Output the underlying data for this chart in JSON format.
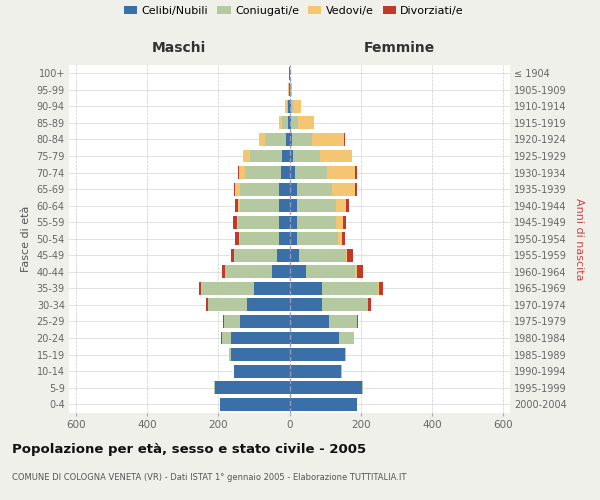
{
  "age_groups": [
    "0-4",
    "5-9",
    "10-14",
    "15-19",
    "20-24",
    "25-29",
    "30-34",
    "35-39",
    "40-44",
    "45-49",
    "50-54",
    "55-59",
    "60-64",
    "65-69",
    "70-74",
    "75-79",
    "80-84",
    "85-89",
    "90-94",
    "95-99",
    "100+"
  ],
  "birth_years": [
    "2000-2004",
    "1995-1999",
    "1990-1994",
    "1985-1989",
    "1980-1984",
    "1975-1979",
    "1970-1974",
    "1965-1969",
    "1960-1964",
    "1955-1959",
    "1950-1954",
    "1945-1949",
    "1940-1944",
    "1935-1939",
    "1930-1934",
    "1925-1929",
    "1920-1924",
    "1915-1919",
    "1910-1914",
    "1905-1909",
    "≤ 1904"
  ],
  "males": {
    "celibi": [
      195,
      210,
      155,
      165,
      165,
      140,
      120,
      100,
      50,
      35,
      30,
      30,
      30,
      30,
      25,
      20,
      10,
      5,
      3,
      1,
      1
    ],
    "coniugati": [
      0,
      2,
      2,
      5,
      25,
      45,
      110,
      150,
      130,
      120,
      110,
      115,
      110,
      110,
      100,
      90,
      60,
      15,
      5,
      1,
      0
    ],
    "vedovi": [
      0,
      0,
      0,
      0,
      0,
      0,
      0,
      0,
      1,
      2,
      3,
      4,
      5,
      12,
      18,
      20,
      15,
      10,
      4,
      1,
      0
    ],
    "divorziati": [
      0,
      0,
      0,
      0,
      2,
      3,
      5,
      5,
      8,
      8,
      10,
      10,
      8,
      3,
      3,
      2,
      1,
      0,
      0,
      0,
      0
    ]
  },
  "females": {
    "nubili": [
      190,
      205,
      145,
      155,
      140,
      110,
      90,
      90,
      45,
      28,
      22,
      20,
      20,
      20,
      15,
      10,
      8,
      4,
      3,
      1,
      1
    ],
    "coniugate": [
      0,
      2,
      2,
      5,
      40,
      80,
      130,
      160,
      140,
      130,
      115,
      110,
      110,
      100,
      90,
      75,
      55,
      20,
      8,
      2,
      0
    ],
    "vedove": [
      0,
      0,
      0,
      0,
      0,
      0,
      1,
      2,
      4,
      5,
      10,
      20,
      30,
      65,
      80,
      90,
      90,
      45,
      20,
      5,
      1
    ],
    "divorziate": [
      0,
      0,
      0,
      0,
      2,
      4,
      8,
      12,
      18,
      15,
      10,
      8,
      8,
      4,
      4,
      2,
      2,
      1,
      0,
      0,
      0
    ]
  },
  "colors": {
    "celibi": "#3a6fa8",
    "coniugati": "#b5c9a1",
    "vedovi": "#f5c672",
    "divorziati": "#c0392b"
  },
  "xlim": 620,
  "title": "Popolazione per età, sesso e stato civile - 2005",
  "subtitle": "COMUNE DI COLOGNA VENETA (VR) - Dati ISTAT 1° gennaio 2005 - Elaborazione TUTTITALIA.IT",
  "ylabel_left": "Fasce di età",
  "ylabel_right": "Anni di nascita",
  "xlabel_maschi": "Maschi",
  "xlabel_femmine": "Femmine",
  "bg_color": "#f0f0eb",
  "plot_bg": "#ffffff"
}
